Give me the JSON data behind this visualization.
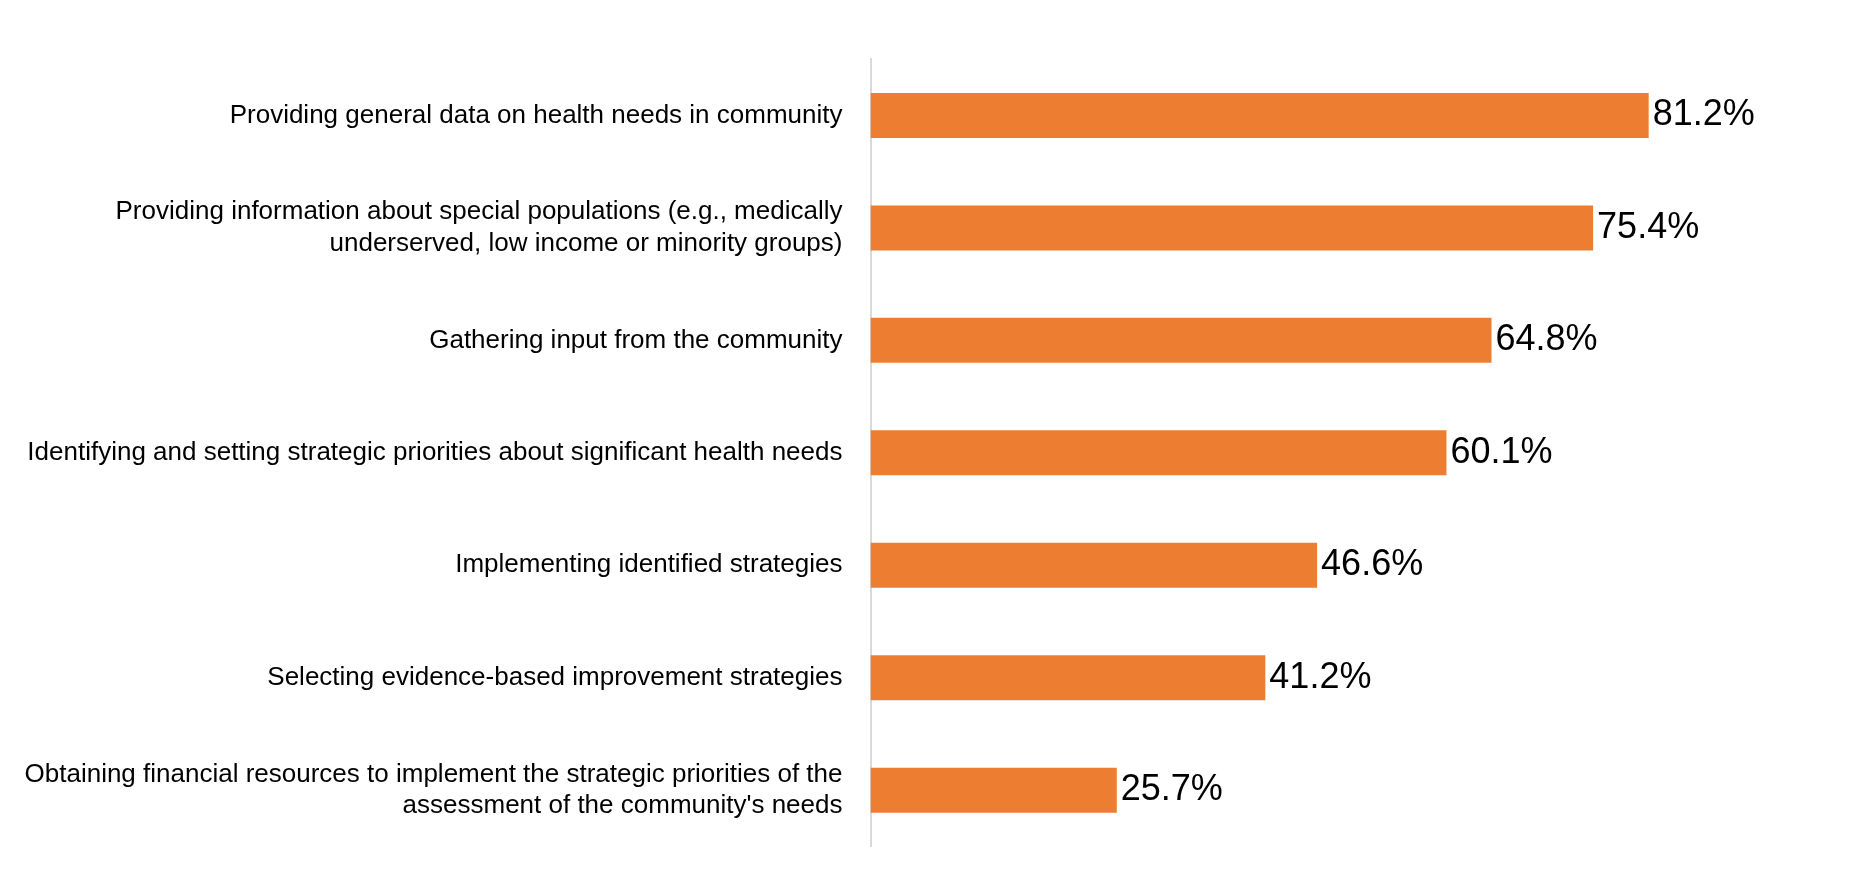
{
  "chart_data": {
    "type": "bar",
    "orientation": "horizontal",
    "categories": [
      "Providing general data on health needs in community",
      "Providing information about special populations (e.g., medically underserved, low income or minority groups)",
      "Gathering input from the community",
      "Identifying and setting strategic priorities about significant health needs",
      "Implementing identified strategies",
      "Selecting evidence-based improvement strategies",
      "Obtaining financial resources to implement the strategic priorities of the assessment of the community's needs"
    ],
    "values": [
      81.2,
      75.4,
      64.8,
      60.1,
      46.6,
      41.2,
      25.7
    ],
    "value_labels": [
      "81.2%",
      "75.4%",
      "64.8%",
      "60.1%",
      "46.6%",
      "41.2%",
      "25.7%"
    ],
    "color": "#ed7d31",
    "grid": false,
    "legend": false
  }
}
